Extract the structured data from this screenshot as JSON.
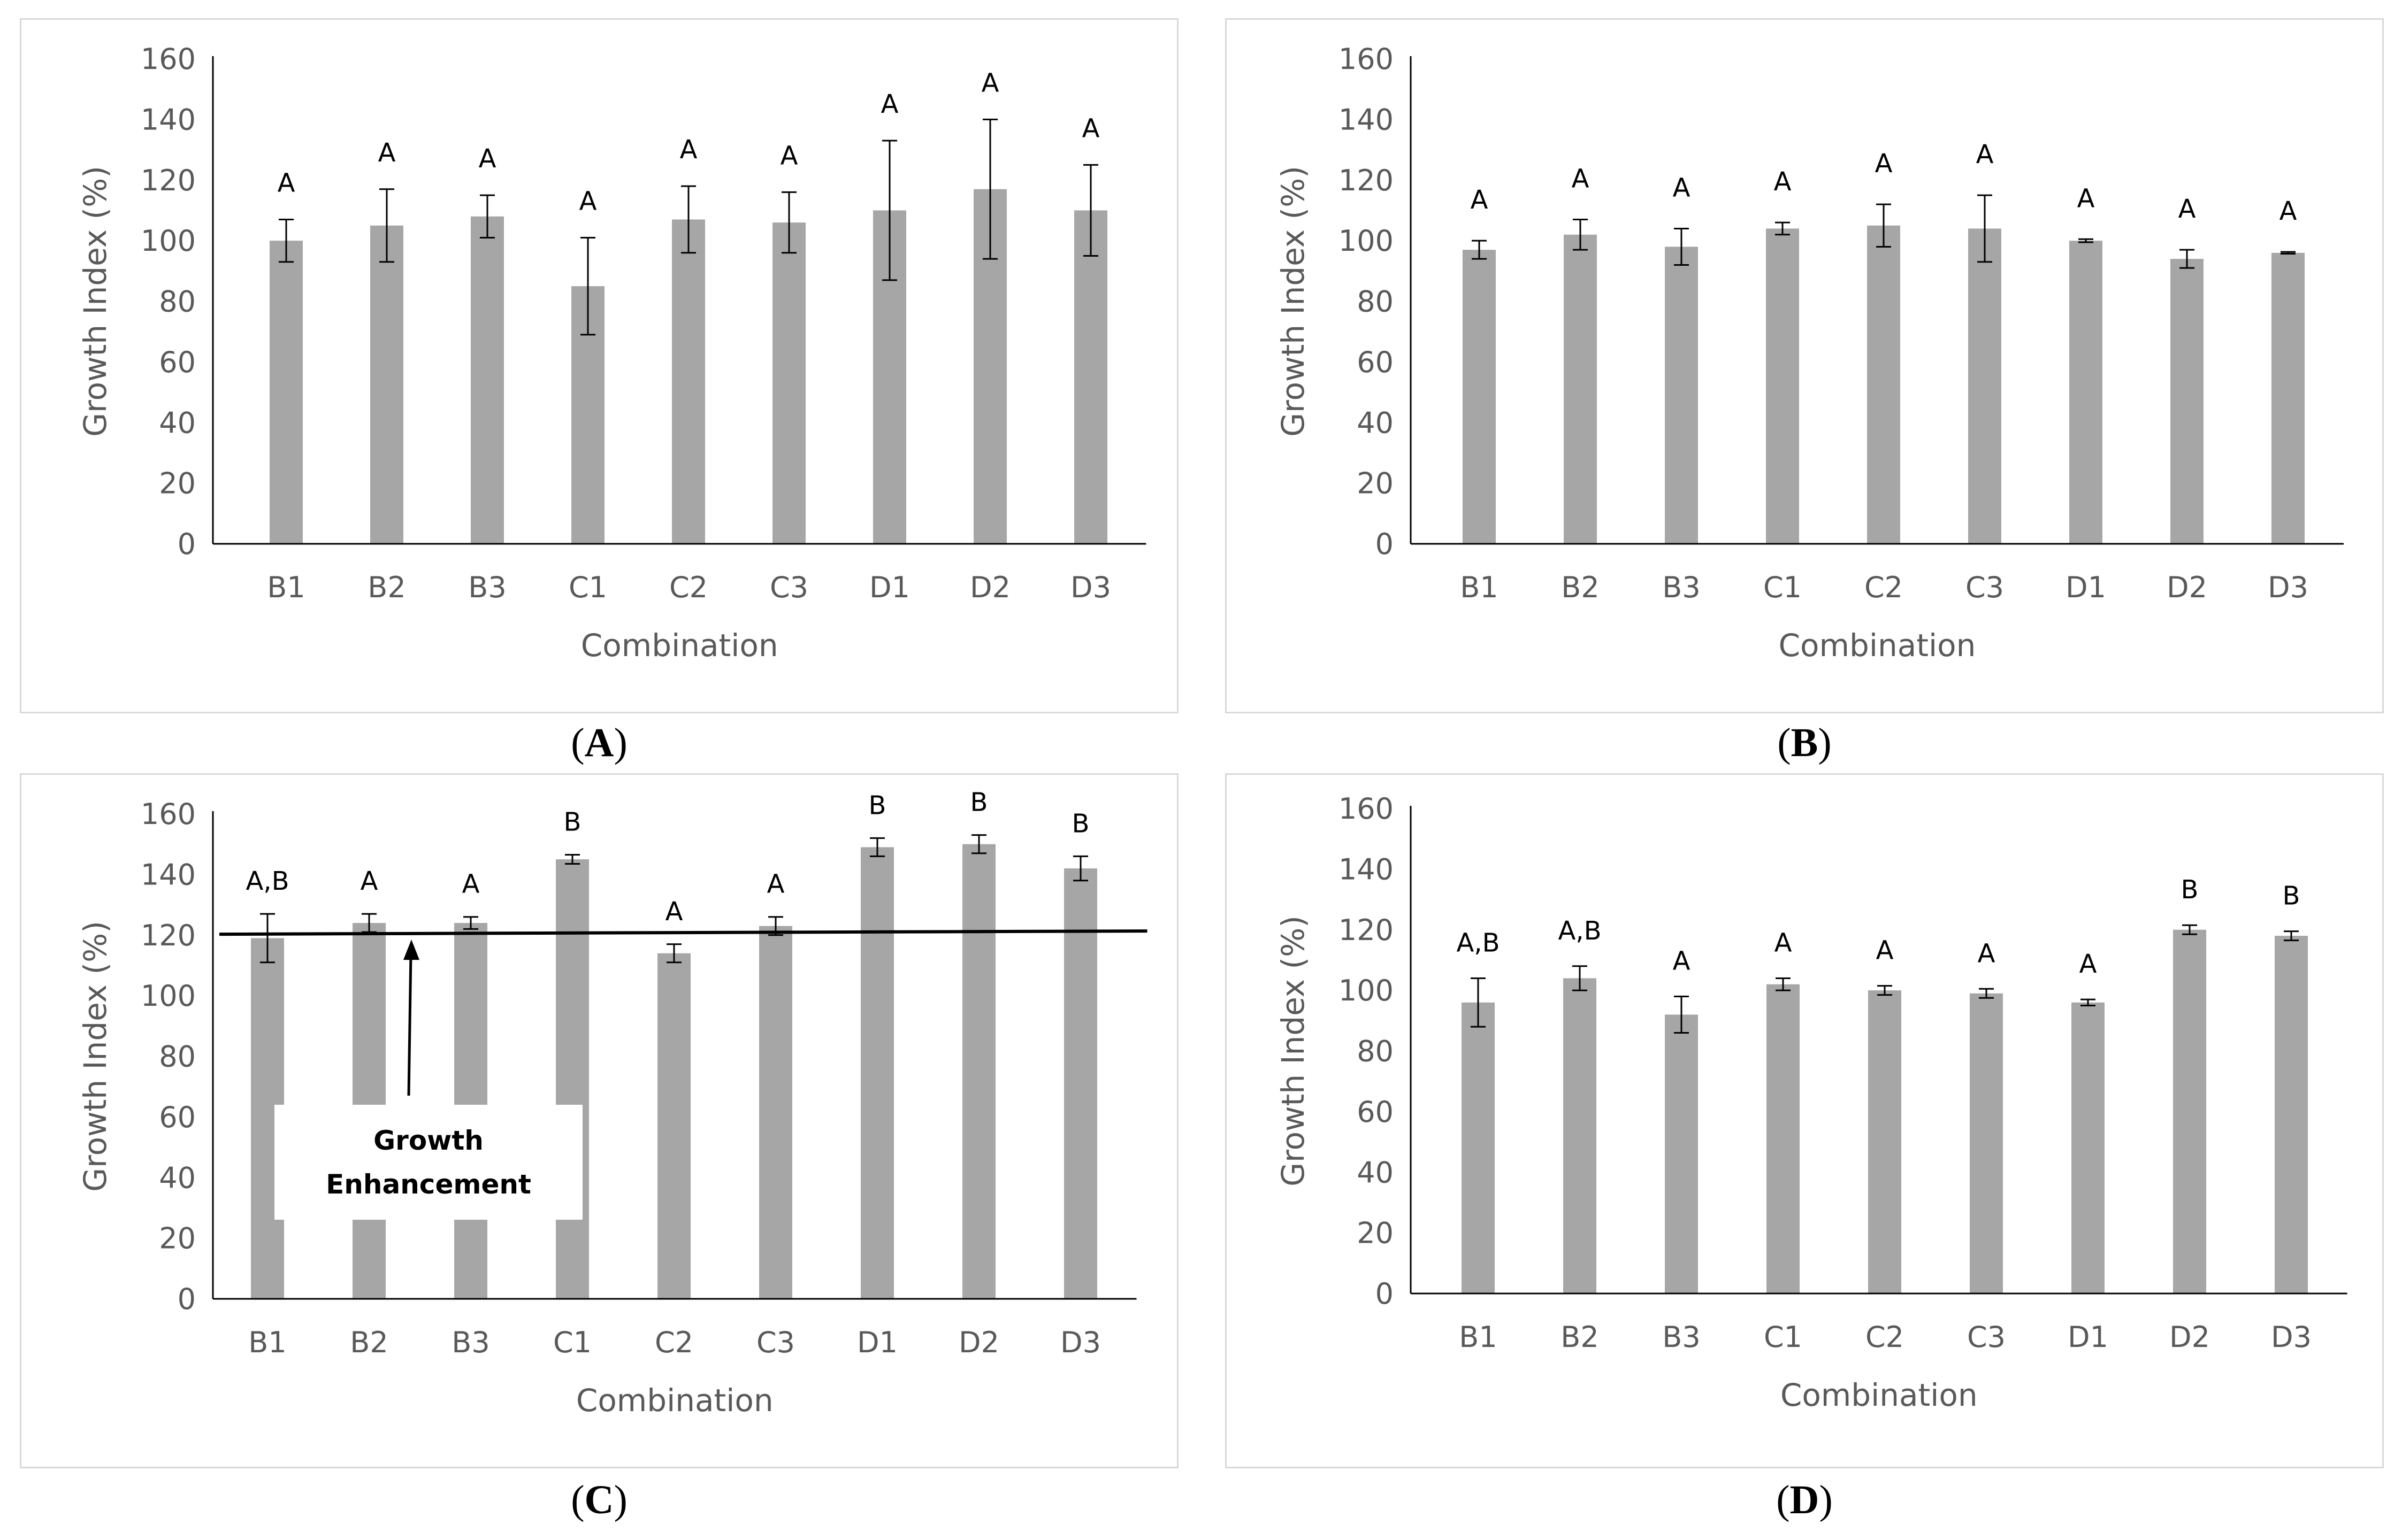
{
  "colors": {
    "bar": "#a6a6a6",
    "axis_text": "#595959",
    "axis_line": "#000000",
    "border": "#d9d9d9"
  },
  "captions": {
    "A": {
      "open": "(",
      "letter": "A",
      "close": ")"
    },
    "B": {
      "open": "(",
      "letter": "B",
      "close": ")"
    },
    "C": {
      "open": "(",
      "letter": "C",
      "close": ")"
    },
    "D": {
      "open": "(",
      "letter": "D",
      "close": ")"
    }
  },
  "chart_data": [
    {
      "panel": "A",
      "type": "bar",
      "categories": [
        "B1",
        "B2",
        "B3",
        "C1",
        "C2",
        "C3",
        "D1",
        "D2",
        "D3"
      ],
      "values": [
        100,
        105,
        108,
        85,
        107,
        106,
        110,
        117,
        110
      ],
      "errors": [
        7,
        12,
        7,
        16,
        11,
        10,
        23,
        23,
        15
      ],
      "letters": [
        "A",
        "A",
        "A",
        "A",
        "A",
        "A",
        "A",
        "A",
        "A"
      ],
      "xlabel": "Combination",
      "ylabel": "Growth Index (%)",
      "ylim": [
        0,
        160
      ],
      "yticks": [
        "0",
        "20",
        "40",
        "60",
        "80",
        "100",
        "120",
        "140",
        "160"
      ]
    },
    {
      "panel": "B",
      "type": "bar",
      "categories": [
        "B1",
        "B2",
        "B3",
        "C1",
        "C2",
        "C3",
        "D1",
        "D2",
        "D3"
      ],
      "values": [
        97,
        102,
        98,
        104,
        105,
        104,
        100,
        94,
        96
      ],
      "errors": [
        3,
        5,
        6,
        2,
        7,
        11,
        0.5,
        3,
        0.3
      ],
      "letters": [
        "A",
        "A",
        "A",
        "A",
        "A",
        "A",
        "A",
        "A",
        "A"
      ],
      "xlabel": "Combination",
      "ylabel": "Growth Index (%)",
      "ylim": [
        0,
        160
      ],
      "yticks": [
        "0",
        "20",
        "40",
        "60",
        "80",
        "100",
        "120",
        "140",
        "160"
      ]
    },
    {
      "panel": "C",
      "type": "bar",
      "categories": [
        "B1",
        "B2",
        "B3",
        "C1",
        "C2",
        "C3",
        "D1",
        "D2",
        "D3"
      ],
      "values": [
        119,
        124,
        124,
        145,
        114,
        123,
        149,
        150,
        142
      ],
      "errors": [
        8,
        3,
        2,
        1.5,
        3,
        3,
        3,
        3,
        4
      ],
      "letters": [
        "A,B",
        "A",
        "A",
        "B",
        "A",
        "A",
        "B",
        "B",
        "B"
      ],
      "xlabel": "Combination",
      "ylabel": "Growth Index (%)",
      "ylim": [
        0,
        160
      ],
      "yticks": [
        "0",
        "20",
        "40",
        "60",
        "80",
        "100",
        "120",
        "140",
        "160"
      ],
      "reference_line": 121,
      "annotation": {
        "line1": "Growth",
        "line2": "Enhancement"
      }
    },
    {
      "panel": "D",
      "type": "bar",
      "categories": [
        "B1",
        "B2",
        "B3",
        "C1",
        "C2",
        "C3",
        "D1",
        "D2",
        "D3"
      ],
      "values": [
        96,
        104,
        92,
        102,
        100,
        99,
        96,
        120,
        118
      ],
      "errors": [
        8,
        4,
        6,
        2,
        1.5,
        1.5,
        1,
        1.5,
        1.5
      ],
      "letters": [
        "A,B",
        "A,B",
        "A",
        "A",
        "A",
        "A",
        "A",
        "B",
        "B"
      ],
      "xlabel": "Combination",
      "ylabel": "Growth Index (%)",
      "ylim": [
        0,
        160
      ],
      "yticks": [
        "0",
        "20",
        "40",
        "60",
        "80",
        "100",
        "120",
        "140",
        "160"
      ]
    }
  ]
}
